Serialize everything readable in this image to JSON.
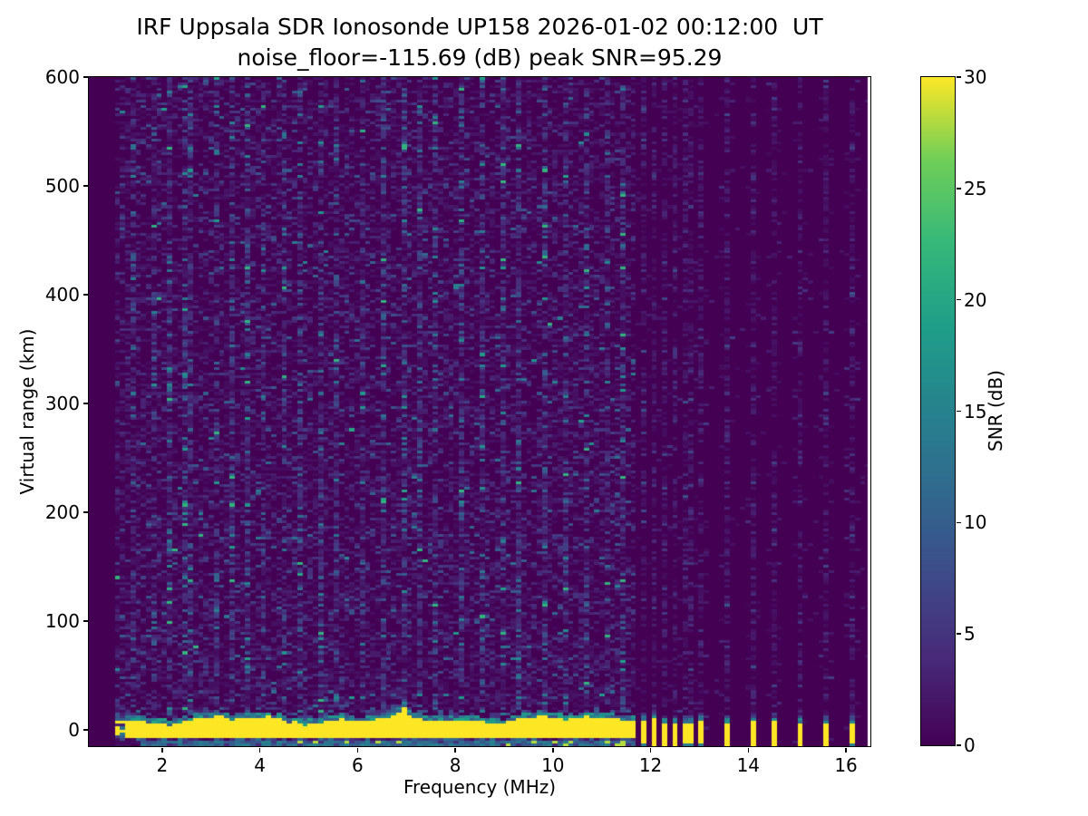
{
  "title": {
    "line1": "IRF Uppsala SDR Ionosonde UP158 2026-01-02 00:12:00  UT",
    "line2": "noise_floor=-115.69 (dB) peak SNR=95.29"
  },
  "chart_data": {
    "type": "heatmap",
    "title": "IRF Uppsala SDR Ionosonde UP158 2026-01-02 00:12:00  UT",
    "subtitle": "noise_floor=-115.69 (dB) peak SNR=95.29",
    "station": "UP158",
    "datetime_ut": "2026-01-02 00:12:00",
    "noise_floor_db": -115.69,
    "peak_snr_db": 95.29,
    "xlabel": "Frequency (MHz)",
    "ylabel": "Virtual range (km)",
    "colorbar_label": "SNR (dB)",
    "xlim": [
      0.5,
      16.5
    ],
    "ylim": [
      -15,
      600
    ],
    "clim": [
      0,
      30
    ],
    "x_ticks": [
      2,
      4,
      6,
      8,
      10,
      12,
      14,
      16
    ],
    "y_ticks": [
      0,
      100,
      200,
      300,
      400,
      500,
      600
    ],
    "colorbar_ticks": [
      0,
      5,
      10,
      15,
      20,
      25,
      30
    ],
    "grid": false,
    "colormap": "viridis",
    "colormap_stops": [
      {
        "t": 0.0,
        "c": "#440154"
      },
      {
        "t": 0.125,
        "c": "#482878"
      },
      {
        "t": 0.25,
        "c": "#3e4a89"
      },
      {
        "t": 0.375,
        "c": "#31688e"
      },
      {
        "t": 0.5,
        "c": "#26828e"
      },
      {
        "t": 0.625,
        "c": "#1f9e89"
      },
      {
        "t": 0.75,
        "c": "#35b779"
      },
      {
        "t": 0.875,
        "c": "#6ece58"
      },
      {
        "t": 1.0,
        "c": "#fde725"
      }
    ],
    "features": {
      "sweep_start_mhz": 1.0,
      "continuous_sweep_end_mhz": 11.68,
      "data_end_mhz": 16.45,
      "ground_return_center_km": 0,
      "ground_return_top_km": 9,
      "ground_return_bottom_km": -7,
      "step_frequencies_mhz": [
        11.86,
        12.06,
        12.26,
        12.46,
        12.66,
        12.86,
        13.06,
        13.6,
        14.06,
        14.55,
        15.05,
        15.55,
        16.08
      ],
      "enhanced_noise_columns_mhz": [
        1.45,
        1.8,
        2.1,
        2.5,
        2.62,
        3.12,
        3.4,
        3.75,
        4.1,
        4.45,
        4.8,
        5.2,
        5.55,
        6.12,
        6.5,
        6.95,
        7.3,
        7.6,
        8.1,
        8.55,
        9.0,
        9.35,
        9.8,
        10.25,
        10.7,
        11.1,
        11.45
      ]
    },
    "render": {
      "seed": 158,
      "freq_bins": 150,
      "range_bins": 240
    }
  }
}
